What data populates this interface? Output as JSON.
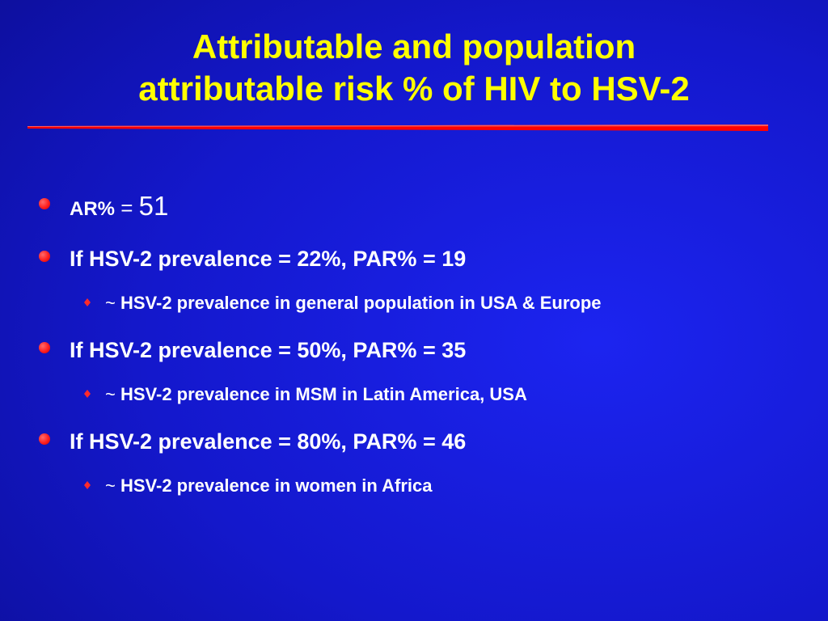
{
  "slide": {
    "title_lines": [
      "Attributable and population",
      "attributable risk % of HIV to HSV-2"
    ],
    "colors": {
      "background": "#1418cc",
      "title": "#ffff00",
      "underline": "#ff0000",
      "bullet": "#ff1f1f",
      "text": "#ffffff"
    },
    "bullets": {
      "ar": {
        "label": "AR%",
        "equals": " = ",
        "value": "51"
      },
      "items": [
        {
          "text": "If HSV-2 prevalence = 22%, PAR% = 19",
          "sub": {
            "tilde": "~ ",
            "text": "HSV-2 prevalence in general population in USA & Europe"
          }
        },
        {
          "text": "If HSV-2 prevalence = 50%, PAR% = 35",
          "sub": {
            "tilde": "~ ",
            "text": "HSV-2 prevalence in MSM in Latin America, USA"
          }
        },
        {
          "text": "If HSV-2 prevalence = 80%, PAR% = 46",
          "sub": {
            "tilde": "~ ",
            "text": "HSV-2 prevalence in women in Africa"
          }
        }
      ]
    }
  }
}
